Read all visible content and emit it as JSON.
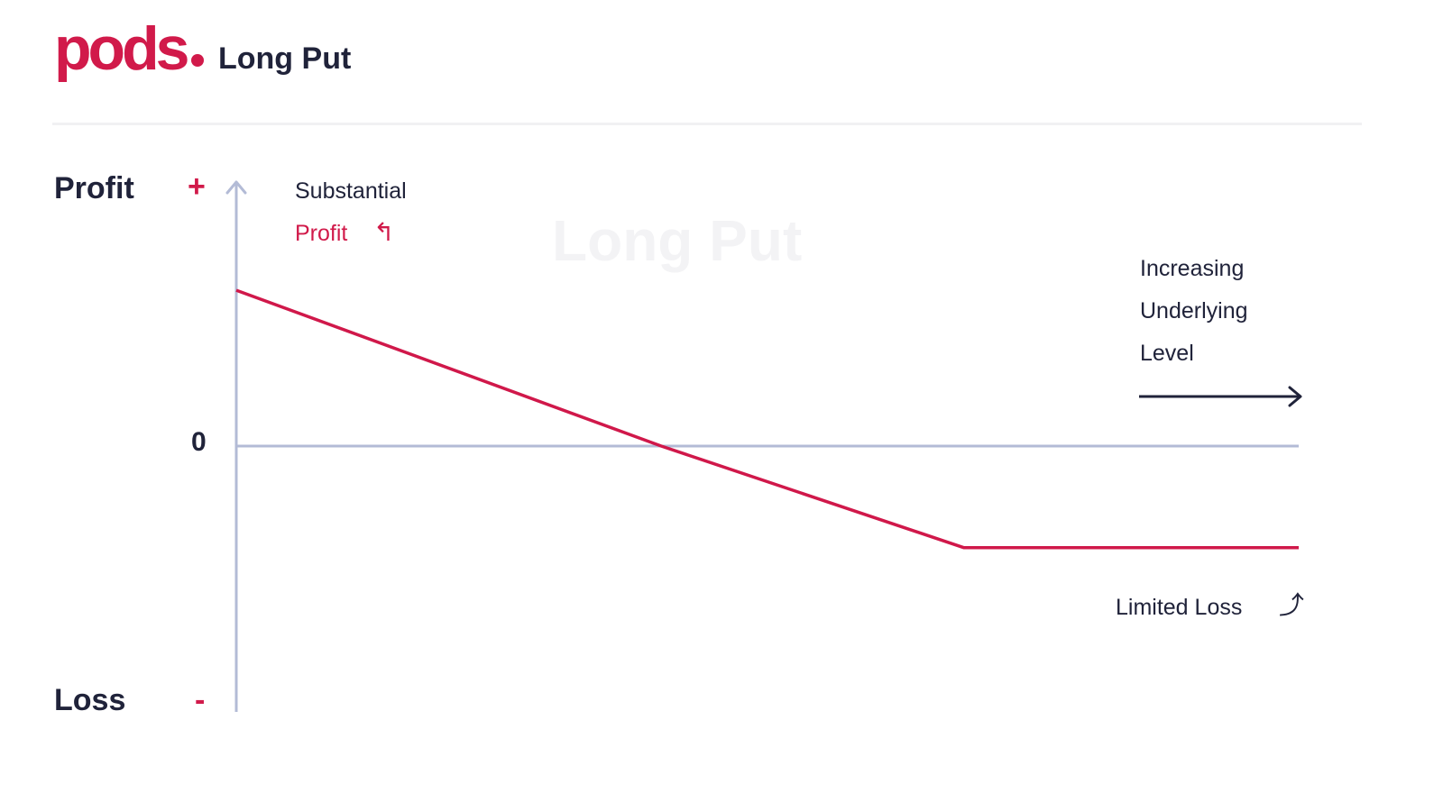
{
  "header": {
    "logo_text": "pods",
    "title": "Long Put"
  },
  "colors": {
    "brand": "#d11a4a",
    "axis": "#b3bbd6",
    "text": "#20233a",
    "payoff": "#d0184a"
  },
  "labels": {
    "profit": "Profit",
    "loss": "Loss",
    "plus": "+",
    "minus": "-",
    "zero": "0",
    "substantial": "Substantial",
    "profit_note": "Profit",
    "profit_arrow": "↰",
    "increasing": "Increasing",
    "underlying": "Underlying",
    "level": "Level",
    "limited_loss": "Limited Loss",
    "loss_arrow": "⤴",
    "watermark": "Long Put"
  },
  "chart_data": {
    "type": "line",
    "title": "Long Put",
    "xlabel": "Increasing Underlying Level",
    "ylabel": "Profit / Loss",
    "xlim": [
      0,
      100
    ],
    "ylim": [
      -100,
      100
    ],
    "series": [
      {
        "x": [
          0,
          40,
          68.5,
          100
        ],
        "y": [
          59,
          0,
          -38.5,
          -38.5
        ]
      }
    ],
    "grid": false
  }
}
